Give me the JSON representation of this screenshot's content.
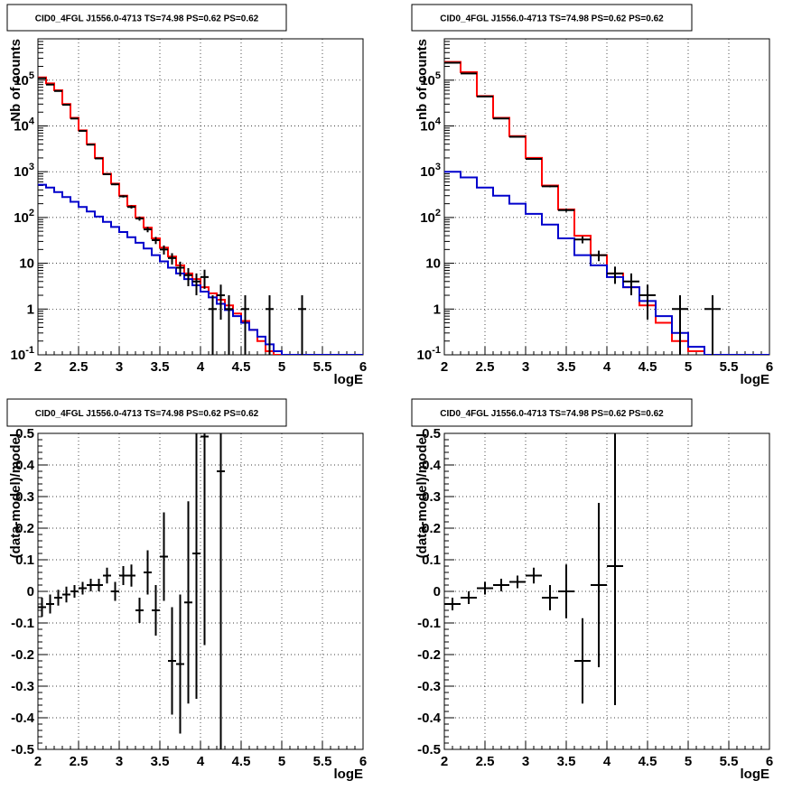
{
  "chart_data": [
    {
      "type": "line",
      "title": "CID0_4FGL J1556.0-4713 TS=74.98 PS=0.62 PS=0.62",
      "xlabel": "logE",
      "ylabel": "Nb of counts",
      "xlim": [
        2,
        6
      ],
      "ylim": [
        0.1,
        800000
      ],
      "yscale": "log",
      "grid": true,
      "x_ticks": [
        "2",
        "2.5",
        "3",
        "3.5",
        "4",
        "4.5",
        "5",
        "5.5",
        "6"
      ],
      "y_ticks": [
        "10^-1",
        "1",
        "10",
        "10^2",
        "10^3",
        "10^4",
        "10^5"
      ],
      "bin_edges": [
        2.0,
        2.1,
        2.2,
        2.3,
        2.4,
        2.5,
        2.6,
        2.7,
        2.8,
        2.9,
        3.0,
        3.1,
        3.2,
        3.3,
        3.4,
        3.5,
        3.6,
        3.7,
        3.8,
        3.9,
        4.0,
        4.1,
        4.2,
        4.3,
        4.4,
        4.5,
        4.6,
        4.7,
        4.8,
        4.9,
        5.0,
        5.1,
        5.2,
        5.3,
        5.4,
        5.5,
        5.6,
        5.7,
        5.8,
        5.9,
        6.0
      ],
      "series": [
        {
          "color": "#ff0000",
          "kind": "step",
          "values": [
            115000,
            85000,
            60000,
            30000,
            15000,
            8000,
            4000,
            2000,
            900,
            550,
            300,
            180,
            100,
            60,
            35,
            22,
            14,
            9,
            6,
            4.5,
            3.0,
            2.2,
            1.6,
            1.2,
            0.8,
            0.55,
            0.35,
            0.2,
            0.12,
            0.1,
            0.1,
            0.1,
            0.1,
            0.1,
            0.1,
            0.1,
            0.1,
            0.1,
            0.1,
            0.1
          ]
        },
        {
          "color": "#0000cc",
          "kind": "step",
          "values": [
            520,
            450,
            360,
            280,
            220,
            170,
            135,
            105,
            80,
            62,
            48,
            37,
            28,
            21,
            15,
            11,
            8,
            6,
            4.5,
            3.3,
            2.4,
            1.8,
            1.3,
            0.95,
            0.7,
            0.5,
            0.35,
            0.25,
            0.17,
            0.12,
            0.1,
            0.1,
            0.1,
            0.1,
            0.1,
            0.1,
            0.1,
            0.1,
            0.1,
            0.1
          ]
        },
        {
          "color": "#000000",
          "kind": "errorbar",
          "x": [
            2.05,
            2.15,
            2.25,
            2.35,
            2.45,
            2.55,
            2.65,
            2.75,
            2.85,
            2.95,
            3.05,
            3.15,
            3.25,
            3.35,
            3.45,
            3.55,
            3.65,
            3.75,
            3.85,
            3.95,
            4.05,
            4.15,
            4.25,
            4.35,
            4.45,
            4.55,
            4.65,
            4.75,
            4.85,
            4.95,
            5.05,
            5.15,
            5.25
          ],
          "y": [
            110000,
            80000,
            58000,
            29000,
            14500,
            7800,
            3900,
            1950,
            880,
            530,
            290,
            170,
            95,
            55,
            32,
            20,
            13,
            8,
            5.5,
            4,
            5,
            1,
            2,
            1,
            0,
            1,
            0,
            0,
            1,
            0,
            0,
            0,
            1
          ]
        }
      ]
    },
    {
      "type": "line",
      "title": "CID0_4FGL J1556.0-4713 TS=74.98 PS=0.62 PS=0.62",
      "xlabel": "logE",
      "ylabel": "nb of counts",
      "xlim": [
        2,
        6
      ],
      "ylim": [
        0.1,
        800000
      ],
      "yscale": "log",
      "grid": true,
      "x_ticks": [
        "2",
        "2.5",
        "3",
        "3.5",
        "4",
        "4.5",
        "5",
        "5.5",
        "6"
      ],
      "y_ticks": [
        "10^-1",
        "1",
        "10",
        "10^2",
        "10^3",
        "10^4",
        "10^5"
      ],
      "bin_edges": [
        2.0,
        2.2,
        2.4,
        2.6,
        2.8,
        3.0,
        3.2,
        3.4,
        3.6,
        3.8,
        4.0,
        4.2,
        4.4,
        4.6,
        4.8,
        5.0,
        5.2,
        5.4,
        5.6,
        5.8,
        6.0
      ],
      "series": [
        {
          "color": "#ff0000",
          "kind": "step",
          "values": [
            250000,
            150000,
            45000,
            15000,
            6000,
            2000,
            500,
            150,
            40,
            15,
            6,
            3,
            1.2,
            0.5,
            0.2,
            0.12,
            0.1,
            0.1,
            0.1,
            0.1
          ]
        },
        {
          "color": "#0000cc",
          "kind": "step",
          "values": [
            1000,
            750,
            450,
            300,
            200,
            120,
            70,
            35,
            15,
            9,
            5,
            3,
            1.5,
            0.7,
            0.3,
            0.15,
            0.1,
            0.1,
            0.1,
            0.1
          ]
        },
        {
          "color": "#000000",
          "kind": "errorbar",
          "x": [
            2.1,
            2.3,
            2.5,
            2.7,
            2.9,
            3.1,
            3.3,
            3.5,
            3.7,
            3.9,
            4.1,
            4.3,
            4.5,
            4.7,
            4.9,
            5.1,
            5.3
          ],
          "y": [
            240000,
            140000,
            44000,
            14500,
            5800,
            1900,
            480,
            145,
            33,
            15,
            6,
            4,
            2,
            0,
            1,
            0,
            1
          ]
        }
      ]
    },
    {
      "type": "scatter",
      "title": "CID0_4FGL J1556.0-4713 TS=74.98 PS=0.62 PS=0.62",
      "xlabel": "logE",
      "ylabel": "(data-model)/model",
      "xlim": [
        2,
        6
      ],
      "ylim": [
        -0.5,
        0.5
      ],
      "grid": true,
      "x_ticks": [
        "2",
        "2.5",
        "3",
        "3.5",
        "4",
        "4.5",
        "5",
        "5.5",
        "6"
      ],
      "y_ticks": [
        "-0.5",
        "-0.4",
        "-0.3",
        "-0.2",
        "-0.1",
        "0",
        "0.1",
        "0.2",
        "0.3",
        "0.4",
        "0.5"
      ],
      "series": [
        {
          "color": "#000000",
          "kind": "errorbar",
          "xerr": 0.05,
          "x": [
            2.05,
            2.15,
            2.25,
            2.35,
            2.45,
            2.55,
            2.65,
            2.75,
            2.85,
            2.95,
            3.05,
            3.15,
            3.25,
            3.35,
            3.45,
            3.55,
            3.65,
            3.75,
            3.85,
            3.95,
            4.05,
            4.25
          ],
          "y": [
            -0.05,
            -0.04,
            -0.02,
            -0.01,
            0.0,
            0.01,
            0.02,
            0.02,
            0.05,
            0.0,
            0.05,
            0.05,
            -0.06,
            0.06,
            -0.06,
            0.11,
            -0.22,
            -0.23,
            -0.035,
            0.12,
            0.49,
            0.38
          ],
          "yerr": [
            0.03,
            0.03,
            0.025,
            0.025,
            0.02,
            0.02,
            0.02,
            0.02,
            0.025,
            0.03,
            0.03,
            0.035,
            0.04,
            0.07,
            0.08,
            0.14,
            0.17,
            0.22,
            0.32,
            0.46,
            0.66,
            0.9
          ]
        }
      ]
    },
    {
      "type": "scatter",
      "title": "CID0_4FGL J1556.0-4713 TS=74.98 PS=0.62 PS=0.62",
      "xlabel": "logE",
      "ylabel": "(data-model)/model",
      "xlim": [
        2,
        6
      ],
      "ylim": [
        -0.5,
        0.5
      ],
      "grid": true,
      "x_ticks": [
        "2",
        "2.5",
        "3",
        "3.5",
        "4",
        "4.5",
        "5",
        "5.5",
        "6"
      ],
      "y_ticks": [
        "-0.5",
        "-0.4",
        "-0.3",
        "-0.2",
        "-0.1",
        "0",
        "0.1",
        "0.2",
        "0.3",
        "0.4",
        "0.5"
      ],
      "series": [
        {
          "color": "#000000",
          "kind": "errorbar",
          "xerr": 0.1,
          "x": [
            2.1,
            2.3,
            2.5,
            2.7,
            2.9,
            3.1,
            3.3,
            3.5,
            3.7,
            3.9,
            4.1
          ],
          "y": [
            -0.04,
            -0.02,
            0.01,
            0.02,
            0.03,
            0.05,
            -0.02,
            0.0,
            -0.22,
            0.02,
            0.08
          ],
          "yerr": [
            0.02,
            0.02,
            0.02,
            0.02,
            0.02,
            0.025,
            0.04,
            0.085,
            0.135,
            0.26,
            0.44
          ]
        }
      ]
    }
  ]
}
